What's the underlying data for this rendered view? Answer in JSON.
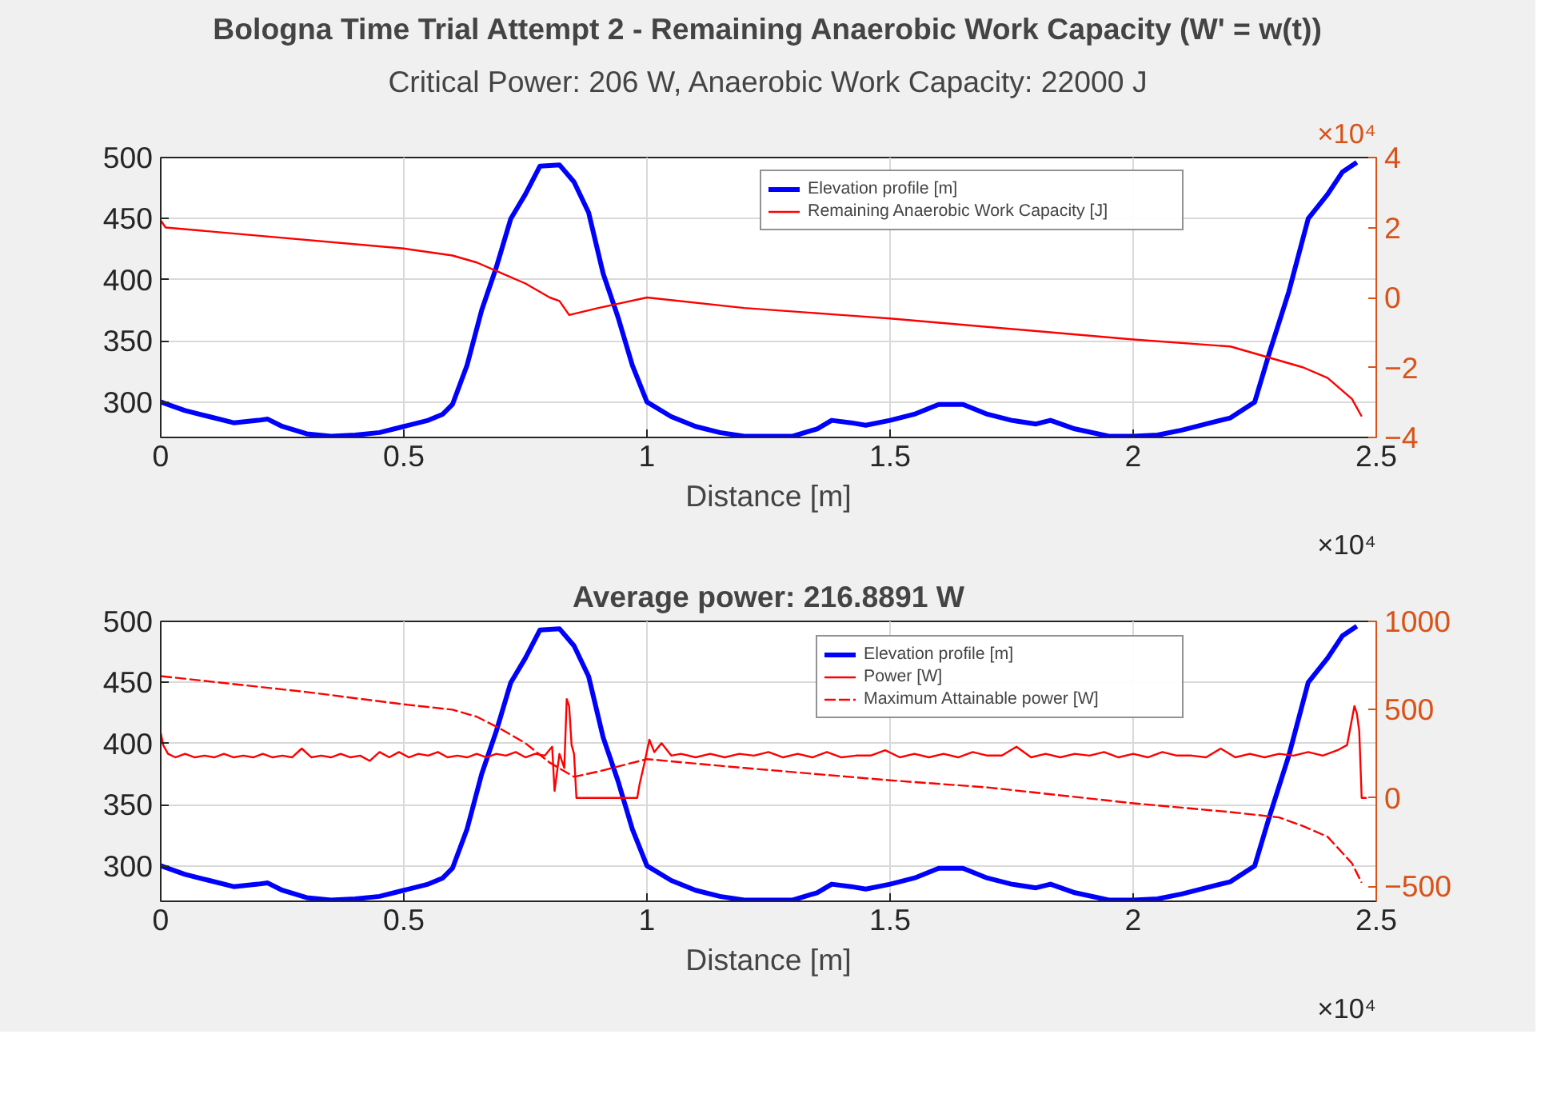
{
  "chart_data": [
    {
      "type": "line",
      "title": "Bologna Time Trial Attempt 2 - Remaining Anaerobic Work Capacity (W' = w(t))",
      "subtitle": "Critical Power: 206 W, Anaerobic Work Capacity: 22000 J",
      "xlabel": "Distance [m]",
      "xlim": [
        0,
        2.5
      ],
      "xticks": [
        0,
        0.5,
        1,
        1.5,
        2,
        2.5
      ],
      "ylim": [
        271,
        500
      ],
      "yticks": [
        300,
        350,
        400,
        450,
        500
      ],
      "y2lim": [
        -4,
        4
      ],
      "y2ticks": [
        -4,
        -2,
        0,
        2,
        4
      ],
      "grid": true,
      "legend": "top right",
      "annotations": [
        "×10⁴",
        "×10⁴"
      ],
      "series": [
        {
          "name": "Elevation profile [m]",
          "color": "#0000ff",
          "line_style": "solid",
          "x": [
            0,
            0.05,
            0.1,
            0.15,
            0.2,
            0.22,
            0.25,
            0.3,
            0.35,
            0.4,
            0.45,
            0.5,
            0.55,
            0.58,
            0.6,
            0.63,
            0.66,
            0.69,
            0.72,
            0.75,
            0.78,
            0.82,
            0.85,
            0.88,
            0.91,
            0.94,
            0.97,
            1,
            1.05,
            1.1,
            1.15,
            1.2,
            1.25,
            1.3,
            1.35,
            1.38,
            1.42,
            1.45,
            1.5,
            1.55,
            1.6,
            1.65,
            1.7,
            1.75,
            1.8,
            1.83,
            1.88,
            1.95,
            2,
            2.05,
            2.1,
            2.15,
            2.2,
            2.25,
            2.28,
            2.32,
            2.36,
            2.4,
            2.43,
            2.46
          ],
          "values": [
            300,
            293,
            288,
            283,
            285,
            286,
            280,
            274,
            272,
            273,
            275,
            280,
            285,
            290,
            298,
            330,
            375,
            410,
            450,
            470,
            493,
            494,
            480,
            455,
            405,
            370,
            330,
            300,
            288,
            280,
            275,
            272,
            272,
            272,
            278,
            285,
            283,
            281,
            285,
            290,
            298,
            298,
            290,
            285,
            282,
            285,
            278,
            272,
            272,
            273,
            277,
            282,
            287,
            300,
            340,
            390,
            450,
            470,
            488,
            496
          ]
        },
        {
          "name": "Remaining Anaerobic Work Capacity [J]",
          "color": "#ff0000",
          "axis": "y2",
          "line_style": "solid",
          "x": [
            0,
            0.01,
            0.5,
            0.6,
            0.65,
            0.7,
            0.75,
            0.8,
            0.82,
            0.84,
            0.9,
            1,
            1.2,
            1.4,
            1.5,
            2,
            2.2,
            2.3,
            2.35,
            2.4,
            2.45,
            2.47
          ],
          "values": [
            2.2,
            2.0,
            1.4,
            1.2,
            1.0,
            0.7,
            0.4,
            0,
            -0.1,
            -0.5,
            -0.3,
            0,
            -0.3,
            -0.5,
            -0.6,
            -1.2,
            -1.4,
            -1.8,
            -2.0,
            -2.3,
            -2.9,
            -3.4
          ]
        }
      ]
    },
    {
      "type": "line",
      "title": "Average power: 216.8891 W",
      "xlabel": "Distance [m]",
      "xlim": [
        0,
        2.5
      ],
      "xticks": [
        0,
        0.5,
        1,
        1.5,
        2,
        2.5
      ],
      "ylim": [
        271,
        500
      ],
      "yticks": [
        300,
        350,
        400,
        450,
        500
      ],
      "y2lim": [
        -585,
        1000
      ],
      "y2ticks": [
        -500,
        0,
        500,
        1000
      ],
      "grid": true,
      "legend": "top right",
      "annotations": [
        "×10⁴"
      ],
      "series": [
        {
          "name": "Elevation profile [m]",
          "color": "#0000ff",
          "line_style": "solid",
          "x": [
            0,
            0.05,
            0.1,
            0.15,
            0.2,
            0.22,
            0.25,
            0.3,
            0.35,
            0.4,
            0.45,
            0.5,
            0.55,
            0.58,
            0.6,
            0.63,
            0.66,
            0.69,
            0.72,
            0.75,
            0.78,
            0.82,
            0.85,
            0.88,
            0.91,
            0.94,
            0.97,
            1,
            1.05,
            1.1,
            1.15,
            1.2,
            1.25,
            1.3,
            1.35,
            1.38,
            1.42,
            1.45,
            1.5,
            1.55,
            1.6,
            1.65,
            1.7,
            1.75,
            1.8,
            1.83,
            1.88,
            1.95,
            2,
            2.05,
            2.1,
            2.15,
            2.2,
            2.25,
            2.28,
            2.32,
            2.36,
            2.4,
            2.43,
            2.46
          ],
          "values": [
            300,
            293,
            288,
            283,
            285,
            286,
            280,
            274,
            272,
            273,
            275,
            280,
            285,
            290,
            298,
            330,
            375,
            410,
            450,
            470,
            493,
            494,
            480,
            455,
            405,
            370,
            330,
            300,
            288,
            280,
            275,
            272,
            272,
            272,
            278,
            285,
            283,
            281,
            285,
            290,
            298,
            298,
            290,
            285,
            282,
            285,
            278,
            272,
            272,
            273,
            277,
            282,
            287,
            300,
            340,
            390,
            450,
            470,
            488,
            496
          ]
        },
        {
          "name": "Power [W]",
          "color": "#ff0000",
          "axis": "y2",
          "line_style": "solid",
          "x": [
            0,
            0.005,
            0.015,
            0.03,
            0.05,
            0.07,
            0.09,
            0.11,
            0.13,
            0.15,
            0.17,
            0.19,
            0.21,
            0.23,
            0.25,
            0.27,
            0.29,
            0.31,
            0.33,
            0.35,
            0.37,
            0.39,
            0.41,
            0.43,
            0.45,
            0.47,
            0.49,
            0.51,
            0.53,
            0.55,
            0.57,
            0.59,
            0.61,
            0.63,
            0.65,
            0.67,
            0.69,
            0.71,
            0.73,
            0.75,
            0.77,
            0.79,
            0.805,
            0.81,
            0.82,
            0.83,
            0.835,
            0.84,
            0.845,
            0.85,
            0.855,
            0.98,
            0.985,
            0.995,
            1.005,
            1.015,
            1.03,
            1.05,
            1.07,
            1.1,
            1.13,
            1.16,
            1.19,
            1.22,
            1.25,
            1.28,
            1.31,
            1.34,
            1.37,
            1.4,
            1.43,
            1.46,
            1.49,
            1.52,
            1.55,
            1.58,
            1.61,
            1.64,
            1.67,
            1.7,
            1.73,
            1.76,
            1.79,
            1.82,
            1.85,
            1.88,
            1.91,
            1.94,
            1.97,
            2,
            2.03,
            2.06,
            2.09,
            2.12,
            2.15,
            2.18,
            2.21,
            2.24,
            2.27,
            2.3,
            2.33,
            2.36,
            2.39,
            2.42,
            2.44,
            2.455,
            2.46,
            2.465,
            2.47,
            2.48
          ],
          "values": [
            370,
            300,
            250,
            230,
            250,
            230,
            240,
            230,
            250,
            230,
            240,
            230,
            250,
            230,
            240,
            230,
            280,
            230,
            240,
            230,
            250,
            230,
            240,
            210,
            260,
            230,
            260,
            230,
            250,
            240,
            260,
            230,
            240,
            230,
            250,
            230,
            250,
            240,
            260,
            230,
            250,
            240,
            290,
            40,
            250,
            170,
            560,
            520,
            300,
            250,
            0,
            0,
            80,
            200,
            330,
            260,
            310,
            240,
            250,
            230,
            250,
            230,
            250,
            240,
            260,
            230,
            250,
            230,
            260,
            230,
            240,
            240,
            270,
            230,
            250,
            230,
            250,
            230,
            260,
            240,
            240,
            290,
            230,
            250,
            230,
            250,
            240,
            260,
            230,
            250,
            230,
            260,
            240,
            240,
            230,
            280,
            230,
            250,
            230,
            250,
            240,
            260,
            240,
            270,
            300,
            520,
            480,
            380,
            0,
            0
          ]
        },
        {
          "name": "Maximum Attainable power [W]",
          "color": "#ff0000",
          "axis": "y2",
          "line_style": "dashed",
          "x": [
            0,
            0.3,
            0.5,
            0.6,
            0.65,
            0.7,
            0.75,
            0.8,
            0.85,
            0.9,
            1,
            1.2,
            1.5,
            1.7,
            2,
            2.2,
            2.3,
            2.35,
            2.4,
            2.45,
            2.47
          ],
          "values": [
            690,
            600,
            530,
            500,
            460,
            390,
            310,
            200,
            120,
            150,
            220,
            170,
            100,
            60,
            -30,
            -80,
            -110,
            -160,
            -220,
            -370,
            -480
          ]
        }
      ]
    }
  ]
}
